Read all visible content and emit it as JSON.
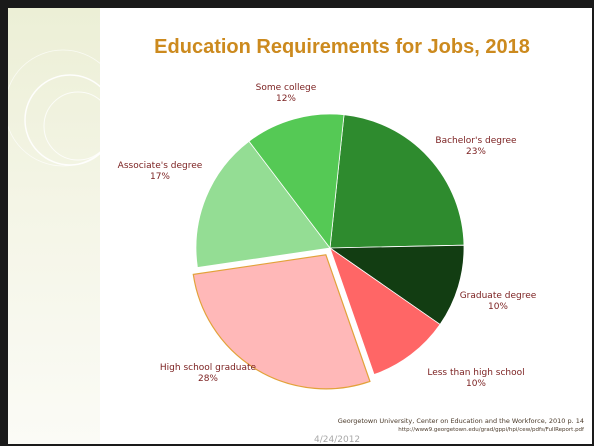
{
  "chart_data": {
    "type": "pie",
    "title": "Education Requirements for Jobs, 2018",
    "slices": [
      {
        "label": "Bachelor's degree",
        "value": 23,
        "percent_label": "23%",
        "color": "#2e8b2e"
      },
      {
        "label": "Graduate degree",
        "value": 10,
        "percent_label": "10%",
        "color": "#123d12"
      },
      {
        "label": "Less than high school",
        "value": 10,
        "percent_label": "10%",
        "color": "#ff6666"
      },
      {
        "label": "High school graduate",
        "value": 28,
        "percent_label": "28%",
        "color": "#ffb8b8"
      },
      {
        "label": "Associate's degree",
        "value": 17,
        "percent_label": "17%",
        "color": "#94dd94"
      },
      {
        "label": "Some college",
        "value": 12,
        "percent_label": "12%",
        "color": "#55c955"
      }
    ]
  },
  "footer": {
    "source_line1": "Georgetown University, Center on Education and the Workforce, 2010 p. 14",
    "source_line2": "http://www9.georgetown.edu/grad/gppi/hpi/cew/pdfs/FullReport.pdf",
    "date": "4/24/2012"
  }
}
